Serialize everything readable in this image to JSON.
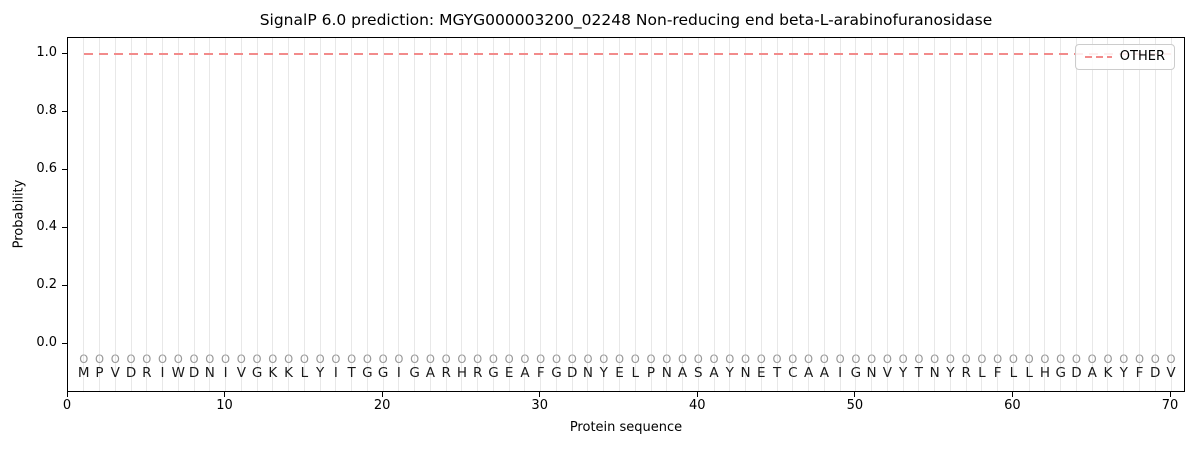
{
  "chart_data": {
    "type": "line",
    "title": "SignalP 6.0 prediction: MGYG000003200_02248 Non-reducing end beta-L-arabinofuranosidase",
    "xlabel": "Protein sequence",
    "ylabel": "Probability",
    "xticks": [
      0,
      10,
      20,
      30,
      40,
      50,
      60,
      70
    ],
    "yticks": [
      {
        "label": "0.0",
        "value": 0.0
      },
      {
        "label": "0.2",
        "value": 0.2
      },
      {
        "label": "0.4",
        "value": 0.4
      },
      {
        "label": "0.6",
        "value": 0.6
      },
      {
        "label": "0.8",
        "value": 0.8
      },
      {
        "label": "1.0",
        "value": 1.0
      }
    ],
    "xlim": [
      0,
      71
    ],
    "ylim": [
      -0.17,
      1.06
    ],
    "grid": {
      "vertical_per_residue": true,
      "horizontal": false
    },
    "legend": {
      "position": "upper-right",
      "entries": [
        {
          "label": "OTHER",
          "style": "dashed",
          "color": "#f28b8b"
        }
      ]
    },
    "series": [
      {
        "name": "OTHER",
        "style": "dashed",
        "color": "#f28b8b",
        "x_start": 1,
        "x_end": 70,
        "y_constant": 1.0
      }
    ],
    "sequence": "MPVDRIWDNIVGKKLYITGGIGARHRGEAFGDNYELPNASAYNETCAAIGNVYTNYRLFLLHGDAKYFDV",
    "per_residue_marker": "O",
    "per_residue_marker_y": -0.06
  },
  "colors": {
    "line": "#f28b8b",
    "grid": "#e8e8e8",
    "marker": "#999999",
    "residue_text": "#1a1a1a",
    "axis": "#000000",
    "legend_border": "#cccccc"
  }
}
